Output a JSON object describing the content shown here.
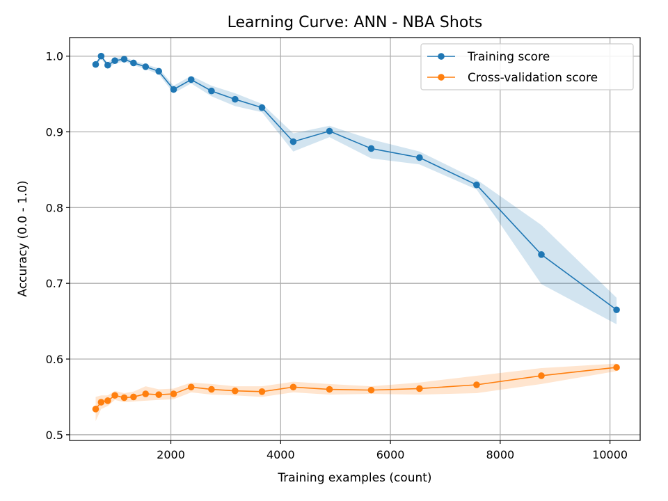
{
  "chart_data": {
    "type": "line",
    "title": "Learning Curve: ANN - NBA Shots",
    "xlabel": "Training examples (count)",
    "ylabel": "Accuracy (0.0 - 1.0)",
    "xlim": [
      155,
      10550
    ],
    "ylim": [
      0.4925,
      1.0245
    ],
    "xticks": [
      2000,
      4000,
      6000,
      8000,
      10000
    ],
    "yticks": [
      0.5,
      0.6,
      0.7,
      0.8,
      0.9,
      1.0
    ],
    "ytick_labels": [
      "0.5",
      "0.6",
      "0.7",
      "0.8",
      "0.9",
      "1.0"
    ],
    "grid": true,
    "legend_position": "upper-right",
    "x": [
      630,
      730,
      850,
      980,
      1150,
      1320,
      1540,
      1780,
      2050,
      2370,
      2740,
      3170,
      3660,
      4230,
      4890,
      5650,
      6530,
      7570,
      8750,
      10120
    ],
    "series": [
      {
        "name": "Training score",
        "color": "#1f77b4",
        "band_color": "#1f77b4",
        "values": [
          0.989,
          1.0,
          0.988,
          0.994,
          0.996,
          0.991,
          0.986,
          0.98,
          0.956,
          0.969,
          0.954,
          0.943,
          0.932,
          0.887,
          0.901,
          0.878,
          0.866,
          0.83,
          0.738,
          0.665
        ],
        "band_low": [
          0.985,
          0.997,
          0.984,
          0.99,
          0.993,
          0.988,
          0.983,
          0.976,
          0.951,
          0.964,
          0.947,
          0.934,
          0.926,
          0.874,
          0.893,
          0.865,
          0.857,
          0.824,
          0.699,
          0.646
        ],
        "band_high": [
          0.993,
          1.0,
          0.992,
          0.998,
          0.999,
          0.994,
          0.989,
          0.984,
          0.961,
          0.974,
          0.961,
          0.951,
          0.937,
          0.898,
          0.908,
          0.89,
          0.874,
          0.837,
          0.777,
          0.681
        ]
      },
      {
        "name": "Cross-validation score",
        "color": "#ff7f0e",
        "band_color": "#ff7f0e",
        "values": [
          0.534,
          0.543,
          0.545,
          0.552,
          0.549,
          0.55,
          0.554,
          0.553,
          0.554,
          0.563,
          0.56,
          0.558,
          0.557,
          0.563,
          0.56,
          0.559,
          0.561,
          0.566,
          0.578,
          0.589
        ],
        "band_low": [
          0.518,
          0.534,
          0.538,
          0.546,
          0.543,
          0.544,
          0.545,
          0.546,
          0.547,
          0.556,
          0.553,
          0.552,
          0.55,
          0.556,
          0.553,
          0.554,
          0.553,
          0.555,
          0.567,
          0.584
        ],
        "band_high": [
          0.55,
          0.552,
          0.552,
          0.558,
          0.555,
          0.557,
          0.564,
          0.56,
          0.561,
          0.569,
          0.567,
          0.564,
          0.564,
          0.57,
          0.567,
          0.564,
          0.569,
          0.578,
          0.588,
          0.594
        ]
      }
    ]
  }
}
